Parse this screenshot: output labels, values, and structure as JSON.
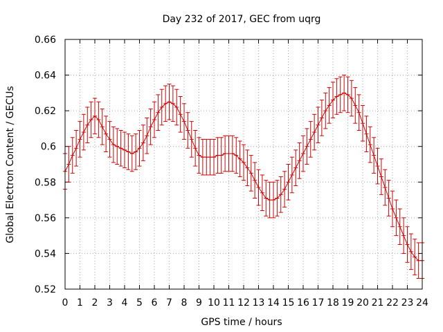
{
  "chart_data": {
    "type": "line",
    "title": "Day 232 of 2017, GEC from uqrg",
    "xlabel": "GPS time / hours",
    "ylabel": "Global Electron Content / GECUs",
    "xlim": [
      0,
      24
    ],
    "ylim": [
      0.52,
      0.66
    ],
    "x_ticks": [
      0,
      1,
      2,
      3,
      4,
      5,
      6,
      7,
      8,
      9,
      10,
      11,
      12,
      13,
      14,
      15,
      16,
      17,
      18,
      19,
      20,
      21,
      22,
      23,
      24
    ],
    "y_ticks": [
      0.52,
      0.54,
      0.56,
      0.58,
      0.6,
      0.62,
      0.64,
      0.66
    ],
    "x_tick_labels": [
      "0",
      "1",
      "2",
      "3",
      "4",
      "5",
      "6",
      "7",
      "8",
      "9",
      "10",
      "11",
      "12",
      "13",
      "14",
      "15",
      "16",
      "17",
      "18",
      "19",
      "20",
      "21",
      "22",
      "23",
      "24"
    ],
    "y_tick_labels": [
      "0.52",
      "0.54",
      "0.56",
      "0.58",
      "0.6",
      "0.62",
      "0.64",
      "0.66"
    ],
    "grid": true,
    "legend": "none",
    "series_color": "#cc0000",
    "series": [
      {
        "x": [
          0,
          0.25,
          0.5,
          0.75,
          1,
          1.25,
          1.5,
          1.75,
          2,
          2.25,
          2.5,
          2.75,
          3,
          3.25,
          3.5,
          3.75,
          4,
          4.25,
          4.5,
          4.75,
          5,
          5.25,
          5.5,
          5.75,
          6,
          6.25,
          6.5,
          6.75,
          7,
          7.25,
          7.5,
          7.75,
          8,
          8.25,
          8.5,
          8.75,
          9,
          9.25,
          9.5,
          9.75,
          10,
          10.25,
          10.5,
          10.75,
          11,
          11.25,
          11.5,
          11.75,
          12,
          12.25,
          12.5,
          12.75,
          13,
          13.25,
          13.5,
          13.75,
          14,
          14.25,
          14.5,
          14.75,
          15,
          15.25,
          15.5,
          15.75,
          16,
          16.25,
          16.5,
          16.75,
          17,
          17.25,
          17.5,
          17.75,
          18,
          18.25,
          18.5,
          18.75,
          19,
          19.25,
          19.5,
          19.75,
          20,
          20.25,
          20.5,
          20.75,
          21,
          21.25,
          21.5,
          21.75,
          22,
          22.25,
          22.5,
          22.75,
          23,
          23.25,
          23.5,
          23.75,
          24
        ],
        "y": [
          0.586,
          0.59,
          0.595,
          0.599,
          0.604,
          0.608,
          0.612,
          0.615,
          0.617,
          0.615,
          0.611,
          0.607,
          0.604,
          0.601,
          0.6,
          0.599,
          0.598,
          0.597,
          0.596,
          0.597,
          0.599,
          0.602,
          0.606,
          0.611,
          0.615,
          0.619,
          0.622,
          0.624,
          0.625,
          0.624,
          0.622,
          0.618,
          0.614,
          0.609,
          0.604,
          0.599,
          0.595,
          0.594,
          0.594,
          0.594,
          0.594,
          0.595,
          0.595,
          0.596,
          0.596,
          0.596,
          0.595,
          0.593,
          0.591,
          0.588,
          0.585,
          0.581,
          0.577,
          0.574,
          0.571,
          0.57,
          0.57,
          0.571,
          0.573,
          0.576,
          0.58,
          0.584,
          0.588,
          0.592,
          0.596,
          0.6,
          0.604,
          0.608,
          0.612,
          0.616,
          0.62,
          0.623,
          0.626,
          0.628,
          0.629,
          0.63,
          0.629,
          0.627,
          0.623,
          0.619,
          0.613,
          0.607,
          0.601,
          0.595,
          0.589,
          0.583,
          0.577,
          0.571,
          0.565,
          0.56,
          0.555,
          0.55,
          0.545,
          0.541,
          0.538,
          0.536,
          0.536
        ],
        "error": 0.01
      }
    ]
  }
}
